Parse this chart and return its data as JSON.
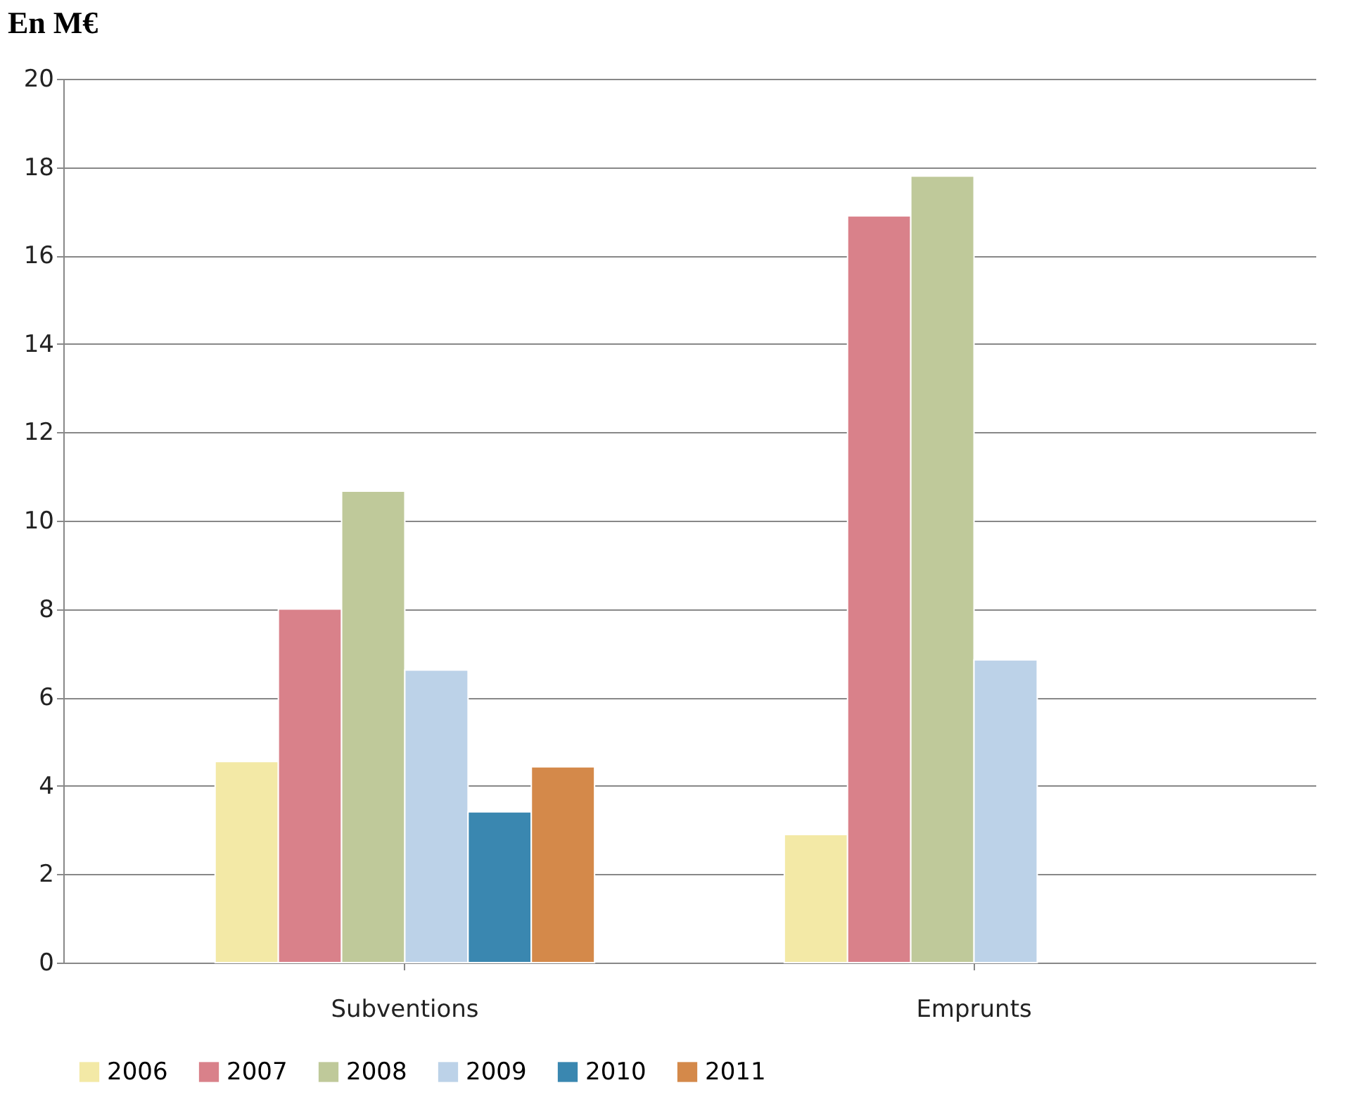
{
  "chart_data": {
    "type": "bar",
    "ylabel": "En M€",
    "categories": [
      "Subventions",
      "Emprunts"
    ],
    "series": [
      {
        "name": "2006",
        "color": "#f3e9a6",
        "values": [
          4.55,
          2.9
        ]
      },
      {
        "name": "2007",
        "color": "#d9818a",
        "values": [
          8.0,
          16.9
        ]
      },
      {
        "name": "2008",
        "color": "#bfc99a",
        "values": [
          10.67,
          17.8
        ]
      },
      {
        "name": "2009",
        "color": "#bcd2e8",
        "values": [
          6.62,
          6.85
        ]
      },
      {
        "name": "2010",
        "color": "#3a87b0",
        "values": [
          3.41,
          null
        ]
      },
      {
        "name": "2011",
        "color": "#d4894a",
        "values": [
          4.43,
          null
        ]
      }
    ],
    "ylim": [
      0,
      20
    ],
    "yticks": [
      0,
      2,
      4,
      6,
      8,
      10,
      12,
      14,
      16,
      18,
      20
    ],
    "grid": "y",
    "legend": "bottom"
  }
}
